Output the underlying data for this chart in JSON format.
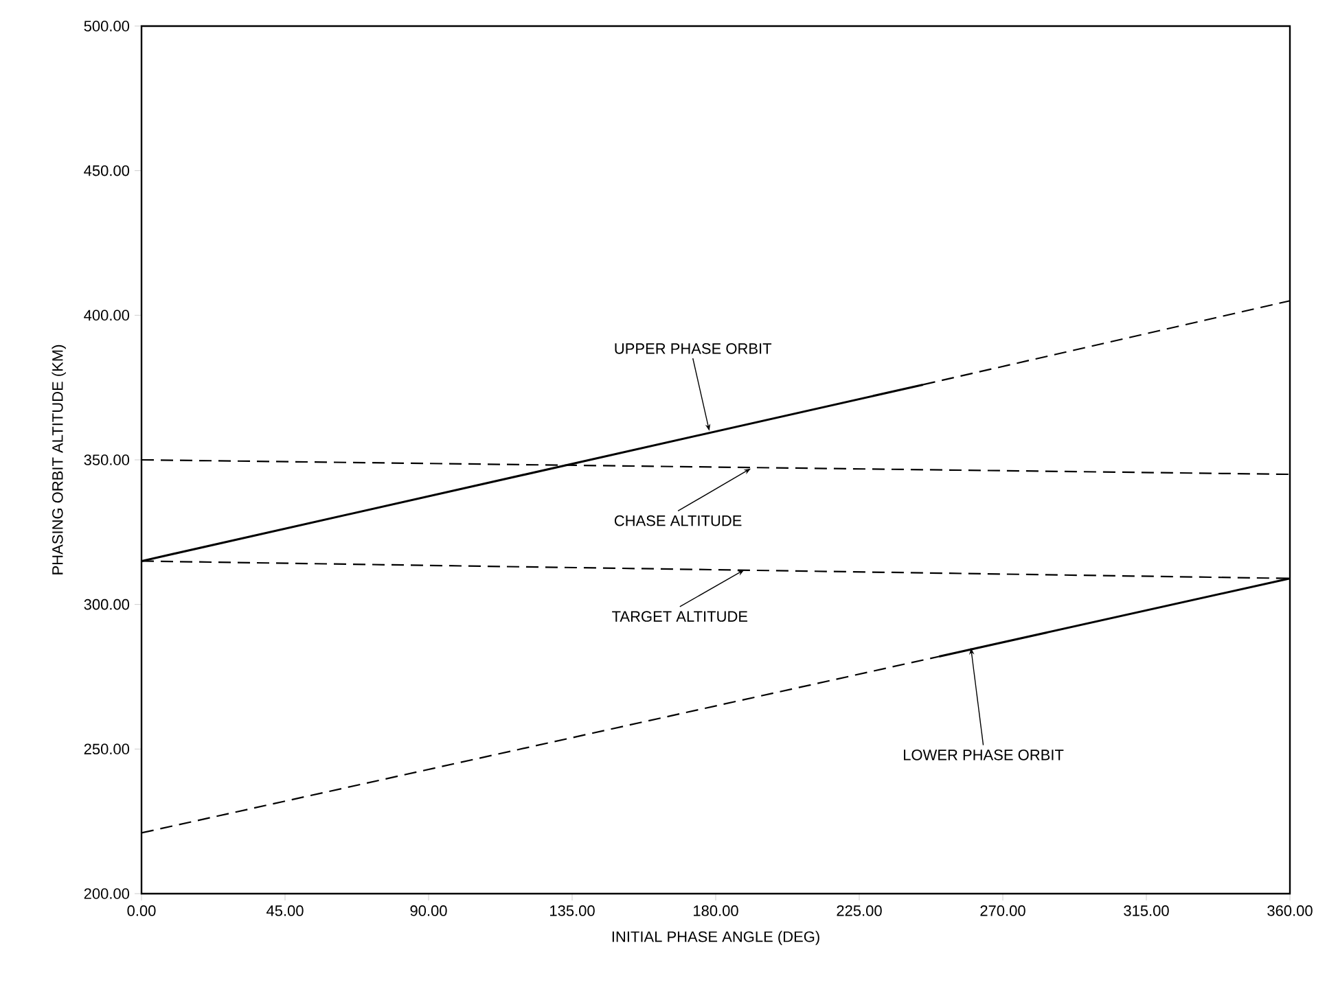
{
  "chart_data": {
    "type": "line",
    "xlabel": "INITIAL PHASE ANGLE (DEG)",
    "ylabel": "PHASING ORBIT ALTITUDE (KM)",
    "xlim": [
      0,
      360
    ],
    "ylim": [
      200,
      500
    ],
    "xticks": [
      {
        "value": 0,
        "label": "0.00"
      },
      {
        "value": 45,
        "label": "45.00"
      },
      {
        "value": 90,
        "label": "90.00"
      },
      {
        "value": 135,
        "label": "135.00"
      },
      {
        "value": 180,
        "label": "180.00"
      },
      {
        "value": 225,
        "label": "225.00"
      },
      {
        "value": 270,
        "label": "270.00"
      },
      {
        "value": 315,
        "label": "315.00"
      },
      {
        "value": 360,
        "label": "360.00"
      }
    ],
    "yticks": [
      {
        "value": 200,
        "label": "200.00"
      },
      {
        "value": 250,
        "label": "250.00"
      },
      {
        "value": 300,
        "label": "300.00"
      },
      {
        "value": 350,
        "label": "350.00"
      },
      {
        "value": 400,
        "label": "400.00"
      },
      {
        "value": 450,
        "label": "450.00"
      },
      {
        "value": 500,
        "label": "500.00"
      }
    ],
    "grid": false,
    "marker": "none",
    "series": [
      {
        "color": "#000000",
        "line_style": "solid",
        "x": [
          0,
          245
        ],
        "values": [
          315,
          376
        ]
      },
      {
        "color": "#000000",
        "line_style": "dashed",
        "x": [
          245,
          360
        ],
        "values": [
          376,
          405
        ]
      },
      {
        "color": "#000000",
        "line_style": "dashed",
        "x": [
          0,
          360
        ],
        "values": [
          350,
          345
        ]
      },
      {
        "color": "#000000",
        "line_style": "dashed",
        "x": [
          0,
          360
        ],
        "values": [
          315,
          309
        ]
      },
      {
        "color": "#000000",
        "line_style": "dashed",
        "x": [
          0,
          250
        ],
        "values": [
          221,
          282
        ]
      },
      {
        "color": "#000000",
        "line_style": "solid",
        "x": [
          250,
          360
        ],
        "values": [
          282,
          309
        ]
      }
    ],
    "annotations": [
      {
        "text": "UPPER PHASE ORBIT",
        "x": 178,
        "y": 360
      },
      {
        "text": "CHASE ALTITUDE",
        "x": 191,
        "y": 347
      },
      {
        "text": "TARGET ALTITUDE",
        "x": 189,
        "y": 312
      },
      {
        "text": "LOWER PHASE ORBIT",
        "x": 260,
        "y": 285
      }
    ]
  }
}
